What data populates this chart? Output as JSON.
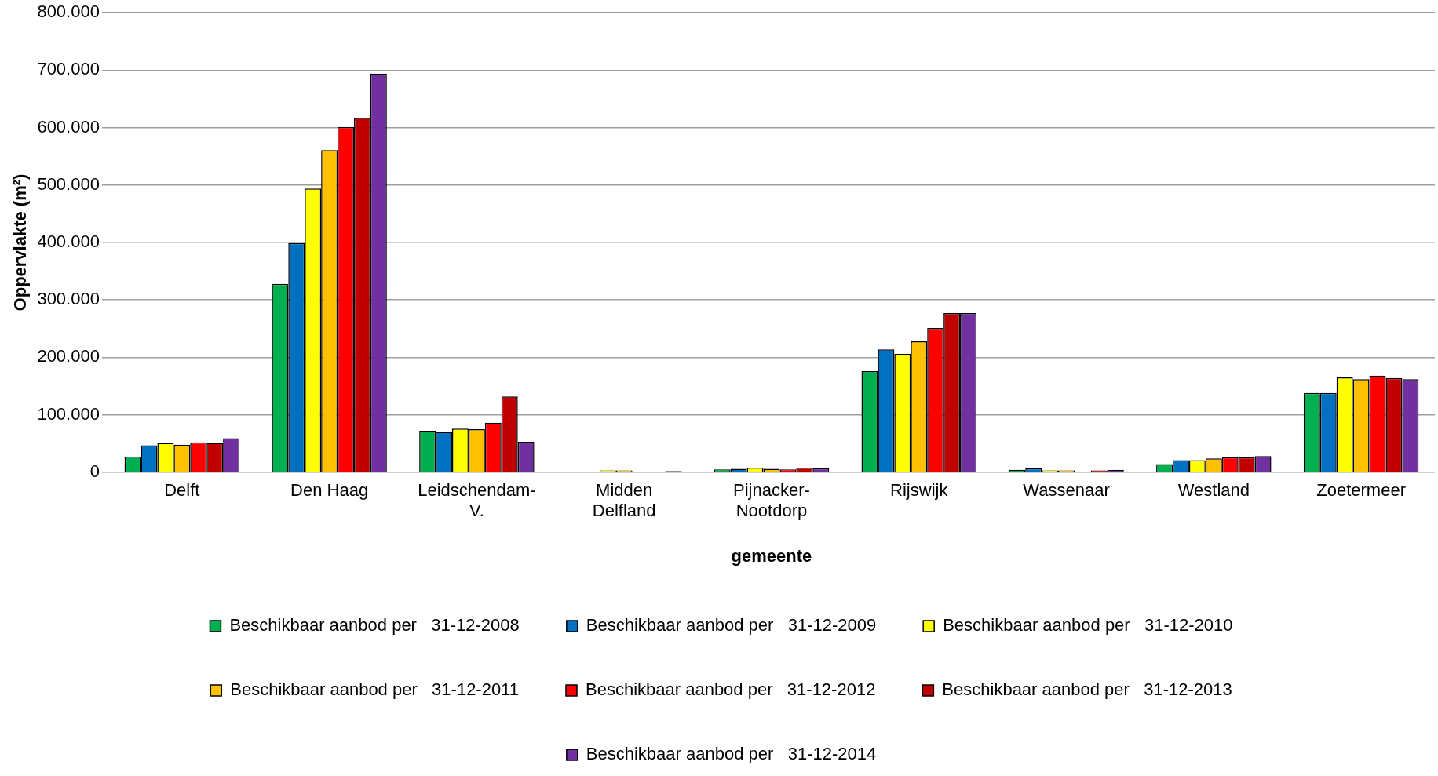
{
  "chart_data": {
    "type": "bar",
    "xlabel": "gemeente",
    "ylabel": "Oppervlakte (m²)",
    "categories": [
      "Delft",
      "Den Haag",
      "Leidschendam-\nV.",
      "Midden\nDelfland",
      "Pijnacker-\nNootdorp",
      "Rijswijk",
      "Wassenaar",
      "Westland",
      "Zoetermeer"
    ],
    "series": [
      {
        "name": "Beschikbaar aanbod per   31-12-2008",
        "color": "#00b050",
        "values": [
          27000,
          328000,
          72000,
          null,
          5000,
          176000,
          4000,
          14000,
          138000
        ]
      },
      {
        "name": "Beschikbaar aanbod per   31-12-2009",
        "color": "#0070c0",
        "values": [
          47000,
          399000,
          70000,
          null,
          6000,
          214000,
          7000,
          21000,
          138000
        ]
      },
      {
        "name": "Beschikbaar aanbod per   31-12-2010",
        "color": "#ffff00",
        "values": [
          51000,
          494000,
          76000,
          3000,
          8000,
          206000,
          3000,
          21000,
          165000
        ]
      },
      {
        "name": "Beschikbaar aanbod per   31-12-2011",
        "color": "#ffc000",
        "values": [
          48000,
          561000,
          75000,
          3000,
          6000,
          228000,
          3000,
          24000,
          162000
        ]
      },
      {
        "name": "Beschikbaar aanbod per   31-12-2012",
        "color": "#ff0000",
        "values": [
          52000,
          601000,
          86000,
          null,
          5000,
          251000,
          null,
          26000,
          168000
        ]
      },
      {
        "name": "Beschikbaar aanbod per   31-12-2013",
        "color": "#c00000",
        "values": [
          51000,
          617000,
          132000,
          null,
          8000,
          277000,
          3000,
          26000,
          164000
        ]
      },
      {
        "name": "Beschikbaar aanbod per   31-12-2014",
        "color": "#7030a0",
        "values": [
          59000,
          694000,
          53000,
          2000,
          7000,
          277000,
          4000,
          28000,
          162000
        ]
      }
    ],
    "ylim": [
      0,
      800000
    ],
    "yticks": [
      {
        "value": 0,
        "label": "0"
      },
      {
        "value": 100000,
        "label": "100.000"
      },
      {
        "value": 200000,
        "label": "200.000"
      },
      {
        "value": 300000,
        "label": "300.000"
      },
      {
        "value": 400000,
        "label": "400.000"
      },
      {
        "value": 500000,
        "label": "500.000"
      },
      {
        "value": 600000,
        "label": "600.000"
      },
      {
        "value": 700000,
        "label": "700.000"
      },
      {
        "value": 800000,
        "label": "800.000"
      }
    ],
    "grid": "y",
    "legend": "bottom"
  }
}
